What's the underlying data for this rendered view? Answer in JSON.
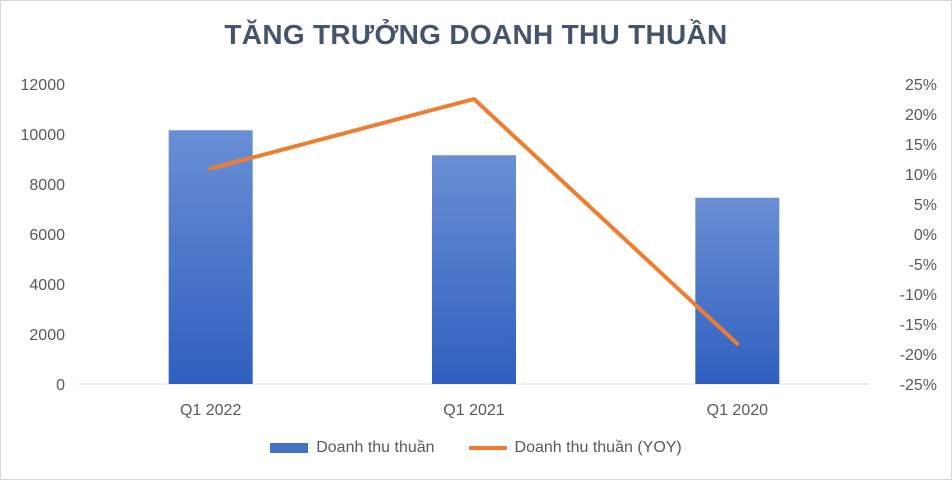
{
  "chart_data": {
    "type": "bar",
    "title": "TĂNG TRƯỞNG DOANH THU THUẦN",
    "categories": [
      "Q1 2022",
      "Q1 2021",
      "Q1 2020"
    ],
    "series": [
      {
        "name": "Doanh thu thuần",
        "type": "bar",
        "axis": "left",
        "values": [
          10150,
          9150,
          7450
        ]
      },
      {
        "name": "Doanh thu thuần (YOY)",
        "type": "line",
        "axis": "right",
        "values": [
          0.109,
          0.225,
          -0.183
        ]
      }
    ],
    "y_left": {
      "min": 0,
      "max": 12000,
      "ticks": [
        "0",
        "2000",
        "4000",
        "6000",
        "8000",
        "10000",
        "12000"
      ]
    },
    "y_right": {
      "min": -0.25,
      "max": 0.25,
      "ticks": [
        "-25%",
        "-20%",
        "-15%",
        "-10%",
        "-5%",
        "0%",
        "5%",
        "10%",
        "15%",
        "20%",
        "25%"
      ]
    },
    "legend": "bottom",
    "grid": false,
    "colors": {
      "bar": "#4472c4",
      "bar_light": "#6a8fd4",
      "line": "#ed7d31",
      "title": "#44546a",
      "axis_text": "#595959"
    }
  }
}
